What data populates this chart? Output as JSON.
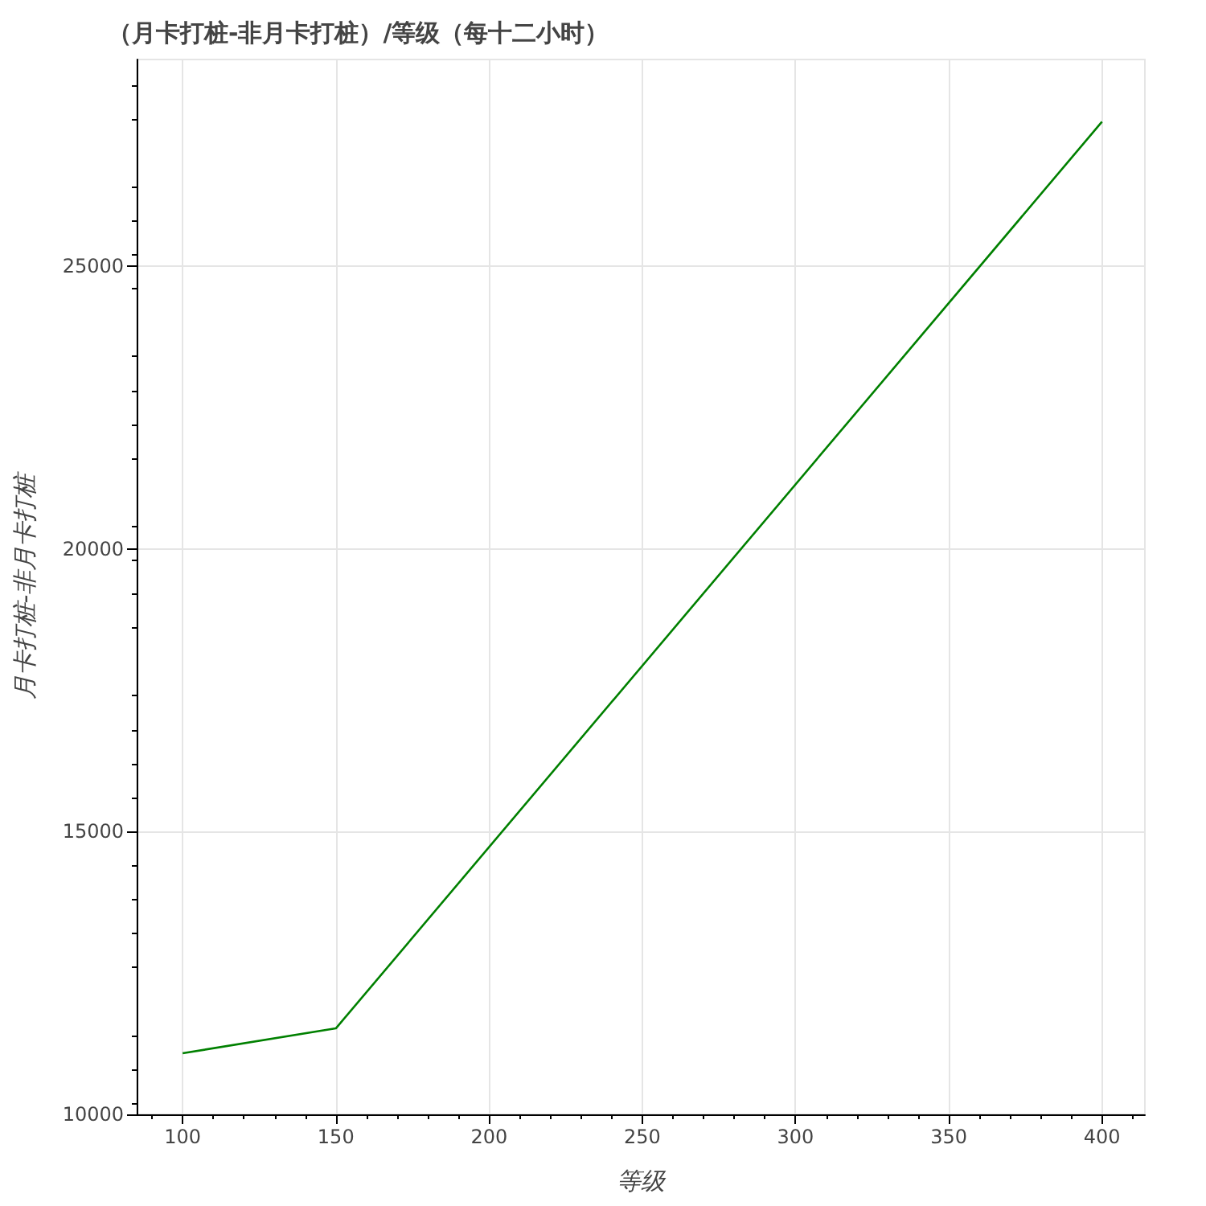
{
  "chart_data": {
    "type": "line",
    "title": "（月卡打桩-非月卡打桩）/等级（每十二小时）",
    "xlabel": "等级",
    "ylabel": "月卡打桩-非月卡打桩",
    "x": [
      100,
      150,
      400
    ],
    "series": [
      {
        "color": "#008000",
        "values": [
          11080,
          11520,
          27550
        ]
      }
    ],
    "xlim": [
      85,
      414
    ],
    "xticks": [
      100,
      150,
      200,
      250,
      300,
      350,
      400
    ],
    "ylim": [
      10000,
      28650
    ],
    "yticks": [
      10000,
      15000,
      20000,
      25000
    ],
    "grid": true,
    "marker": "none",
    "line_style": "solid"
  }
}
